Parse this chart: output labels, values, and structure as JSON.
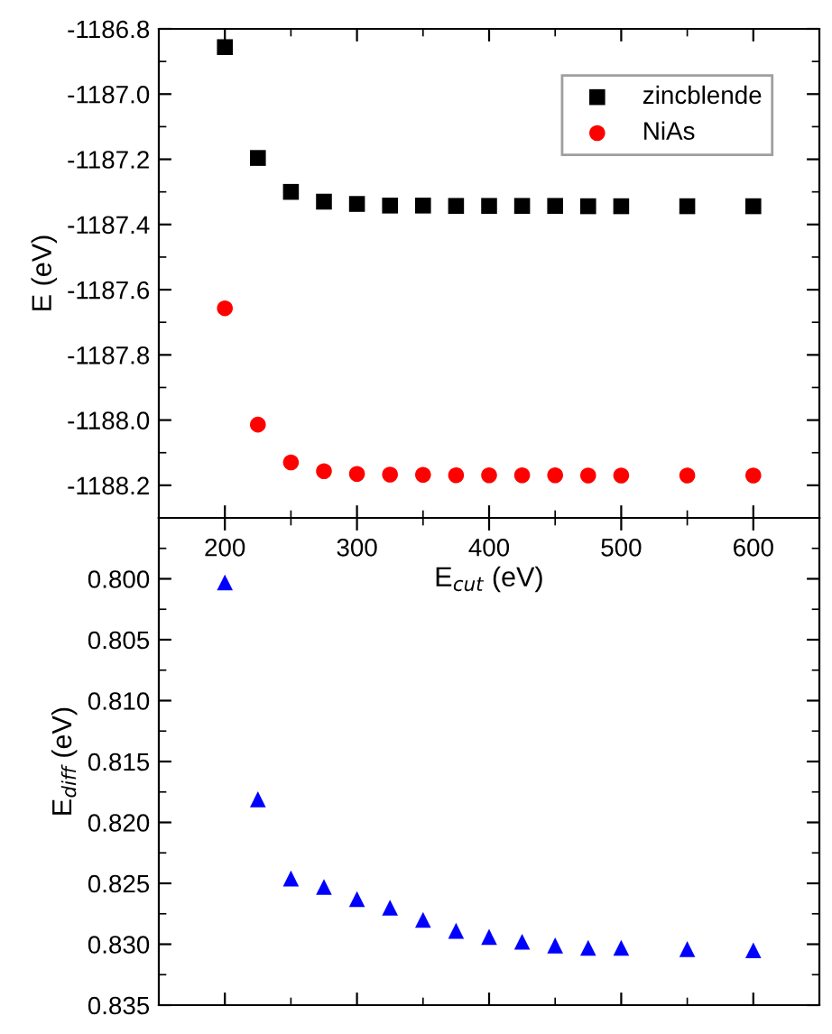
{
  "chart_data": [
    {
      "type": "scatter",
      "xlabel": "E$_{cut}$ (eV)",
      "ylabel": "E (eV)",
      "xlim": [
        150,
        650
      ],
      "xticks": [
        200,
        300,
        400,
        500,
        600
      ],
      "ylim": [
        -1188.3,
        -1186.8
      ],
      "yticks": [
        {
          "value": -1188.2,
          "label": "-1188.2"
        },
        {
          "value": -1188.0,
          "label": "-1188.0"
        },
        {
          "value": -1187.8,
          "label": "-1187.8"
        },
        {
          "value": -1187.6,
          "label": "-1187.6"
        },
        {
          "value": -1187.4,
          "label": "-1187.4"
        },
        {
          "value": -1187.2,
          "label": "-1187.2"
        },
        {
          "value": -1187.0,
          "label": "-1187.0"
        },
        {
          "value": -1186.8,
          "label": "-1186.8"
        }
      ],
      "legend": "top right",
      "x": [
        200,
        225,
        250,
        275,
        300,
        325,
        350,
        375,
        400,
        425,
        450,
        475,
        500,
        550,
        600
      ],
      "series": [
        {
          "name": "zincblende",
          "color": "#000000",
          "marker": "square",
          "values": [
            -1186.856,
            -1187.196,
            -1187.3,
            -1187.33,
            -1187.337,
            -1187.342,
            -1187.342,
            -1187.343,
            -1187.343,
            -1187.343,
            -1187.343,
            -1187.344,
            -1187.344,
            -1187.344,
            -1187.344
          ]
        },
        {
          "name": "NiAs",
          "color": "#ff0000",
          "marker": "circle",
          "values": [
            -1187.657,
            -1188.014,
            -1188.13,
            -1188.157,
            -1188.165,
            -1188.167,
            -1188.168,
            -1188.169,
            -1188.169,
            -1188.169,
            -1188.169,
            -1188.17,
            -1188.17,
            -1188.17,
            -1188.17
          ]
        }
      ]
    },
    {
      "type": "scatter",
      "ylabel": "E$_{diff}$ (eV)",
      "xlim": [
        150,
        650
      ],
      "xticks": [
        200,
        300,
        400,
        500,
        600
      ],
      "ylim": [
        0.835,
        0.795
      ],
      "yticks": [
        {
          "value": 0.8,
          "label": "0.800"
        },
        {
          "value": 0.805,
          "label": "0.805"
        },
        {
          "value": 0.81,
          "label": "0.810"
        },
        {
          "value": 0.815,
          "label": "0.815"
        },
        {
          "value": 0.82,
          "label": "0.820"
        },
        {
          "value": 0.825,
          "label": "0.825"
        },
        {
          "value": 0.83,
          "label": "0.830"
        },
        {
          "value": 0.835,
          "label": "0.835"
        }
      ],
      "tick_labels": "y",
      "x": [
        200,
        225,
        250,
        275,
        300,
        325,
        350,
        375,
        400,
        425,
        450,
        475,
        500,
        550,
        600
      ],
      "series": [
        {
          "color": "#0000ff",
          "marker": "triangle",
          "values": [
            0.8003,
            0.8181,
            0.8246,
            0.8253,
            0.8263,
            0.827,
            0.828,
            0.8289,
            0.8294,
            0.8298,
            0.8301,
            0.8303,
            0.8303,
            0.8304,
            0.8305
          ]
        }
      ]
    }
  ]
}
